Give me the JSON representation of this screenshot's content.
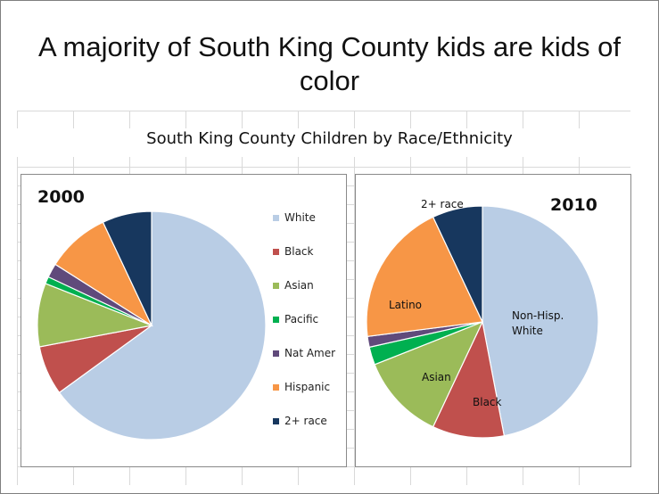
{
  "slide": {
    "headline": "A majority of South King County kids are kids of color"
  },
  "chart_data": [
    {
      "type": "pie",
      "title": "South King County Children by Race/Ethnicity",
      "panel_title": "2000",
      "categories": [
        "White",
        "Black",
        "Asian",
        "Pacific",
        "Nat Amer",
        "Hispanic",
        "2+ race"
      ],
      "values": [
        65,
        7,
        9,
        1,
        2,
        9,
        7
      ],
      "unit": "%",
      "colors": [
        "#b9cde5",
        "#c0504d",
        "#9bbb59",
        "#00b050",
        "#604a7b",
        "#f79646",
        "#17375e"
      ],
      "legend_position": "right",
      "start": "12 o'clock",
      "direction": "clockwise"
    },
    {
      "type": "pie",
      "title": "South King County Children by Race/Ethnicity",
      "panel_title": "2010",
      "categories": [
        "Non-Hisp. White",
        "Black",
        "Asian",
        "Pacific",
        "Nat Amer",
        "Latino",
        "2+ race"
      ],
      "values": [
        47,
        10,
        12,
        2.5,
        1.5,
        20,
        7
      ],
      "unit": "%",
      "colors": [
        "#b9cde5",
        "#c0504d",
        "#9bbb59",
        "#00b050",
        "#604a7b",
        "#f79646",
        "#17375e"
      ],
      "slice_labels": [
        "Non-Hisp. White",
        "Black",
        "Asian",
        "",
        "",
        "Latino",
        "2+ race"
      ],
      "start": "12 o'clock",
      "direction": "clockwise"
    }
  ]
}
